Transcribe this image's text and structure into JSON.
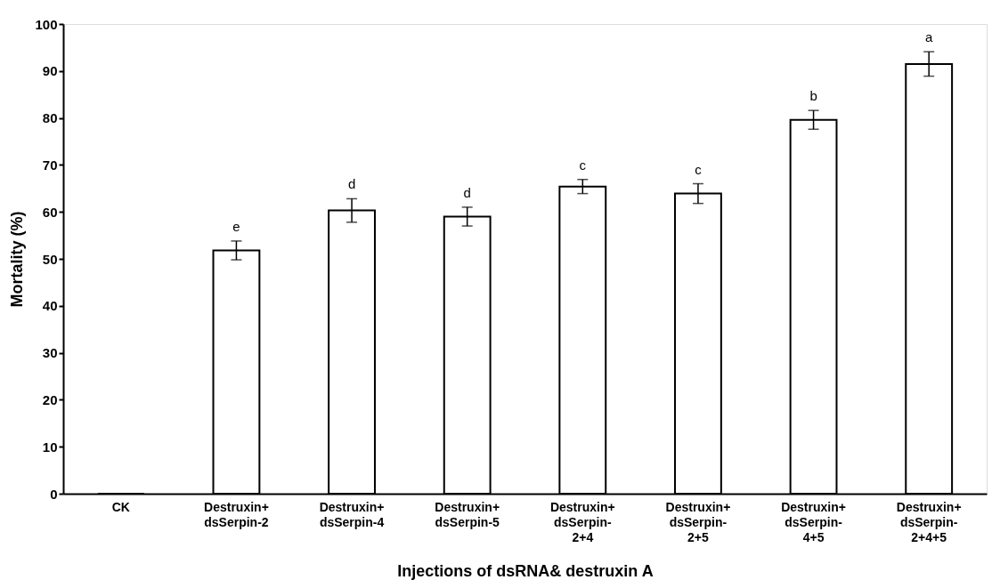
{
  "chart_data": {
    "type": "bar",
    "xlabel": "Injections of dsRNA& destruxin A",
    "ylabel": "Mortality (%)",
    "categories": [
      "CK",
      "Destruxin+\ndsSerpin-2",
      "Destruxin+\ndsSerpin-4",
      "Destruxin+\ndsSerpin-5",
      "Destruxin+\ndsSerpin-\n2+4",
      "Destruxin+\ndsSerpin-\n2+5",
      "Destruxin+\ndsSerpin-\n4+5",
      "Destruxin+\ndsSerpin-\n2+4+5"
    ],
    "values": [
      0,
      51.8,
      60.3,
      59.0,
      65.4,
      63.9,
      79.6,
      91.5
    ],
    "errors": [
      null,
      2.0,
      2.5,
      2.0,
      1.5,
      2.1,
      2.0,
      2.6
    ],
    "color": "#ffffff",
    "ylim": [
      0,
      100
    ],
    "yticks": [
      0,
      10,
      20,
      30,
      40,
      50,
      60,
      70,
      80,
      90,
      100
    ],
    "grid": false,
    "annotations": [
      "e",
      "d",
      "d",
      "c",
      "c",
      "b",
      "a"
    ]
  }
}
